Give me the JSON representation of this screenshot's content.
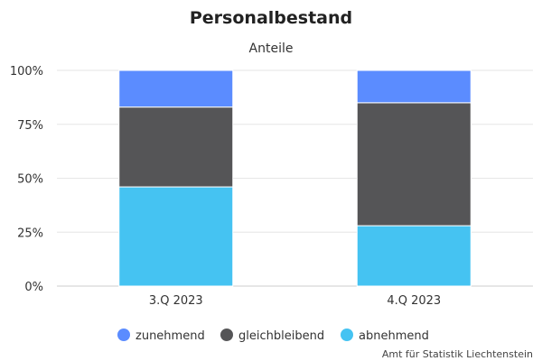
{
  "chart_data": {
    "type": "bar",
    "stacked": true,
    "title": "Personalbestand",
    "subtitle": "Anteile",
    "categories": [
      "3.Q 2023",
      "4.Q 2023"
    ],
    "series": [
      {
        "name": "abnehmend",
        "color": "#45c3f2",
        "values": [
          46,
          28
        ]
      },
      {
        "name": "gleichbleibend",
        "color": "#555557",
        "values": [
          37,
          57
        ]
      },
      {
        "name": "zunehmend",
        "color": "#5b8cff",
        "values": [
          17,
          15
        ]
      }
    ],
    "ylim": [
      0,
      100
    ],
    "yticks": [
      "0%",
      "25%",
      "50%",
      "75%",
      "100%"
    ],
    "grid": true,
    "legend_position": "bottom",
    "legend_order": [
      "zunehmend",
      "gleichbleibend",
      "abnehmend"
    ]
  },
  "source": "Amt für Statistik Liechtenstein"
}
